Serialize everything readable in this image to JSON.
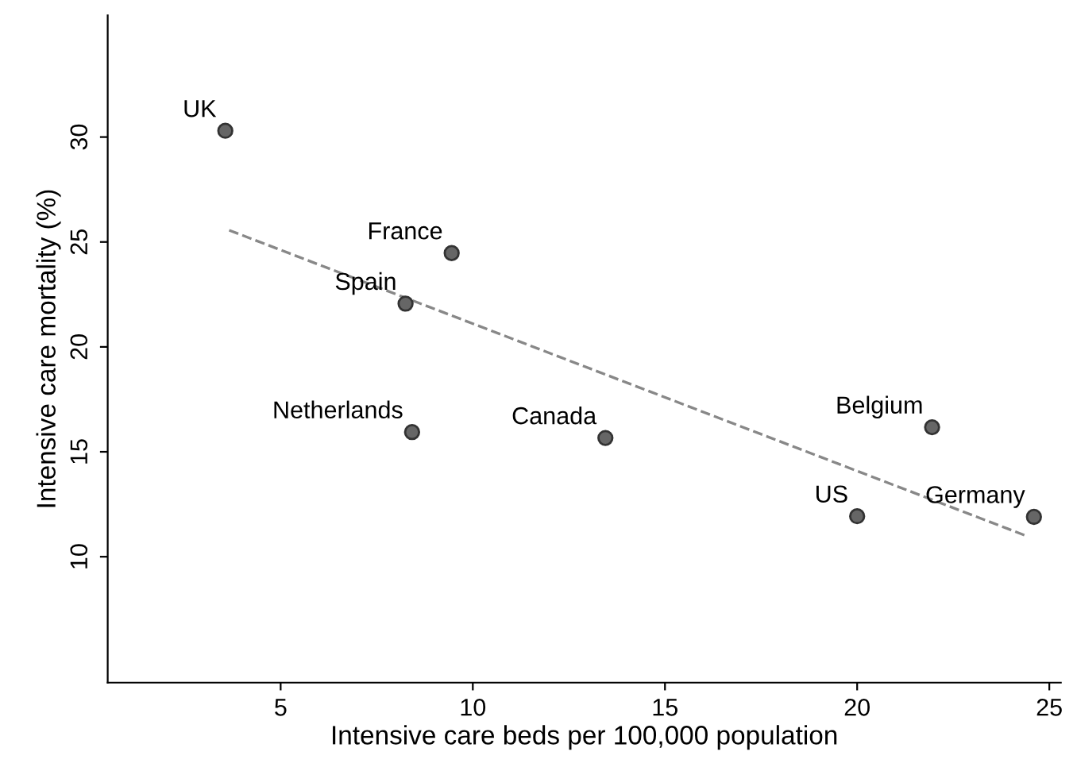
{
  "chart_data": {
    "type": "scatter",
    "xlabel": "Intensive care beds per 100,000 population",
    "ylabel": "Intensive care mortality (%)",
    "xlim": [
      0.5,
      25.3
    ],
    "ylim": [
      4,
      35.8
    ],
    "xticks": [
      5,
      10,
      15,
      20,
      25
    ],
    "yticks": [
      10,
      15,
      20,
      25,
      30
    ],
    "grid": false,
    "series": [
      {
        "color": "#666666",
        "marker": "circle",
        "x": [
          3.56,
          9.45,
          8.25,
          8.42,
          13.45,
          21.95,
          20.0,
          24.6
        ],
        "values": [
          30.3,
          24.47,
          22.06,
          15.94,
          15.66,
          16.17,
          11.93,
          11.9
        ]
      },
      {
        "type": "line",
        "color": "#888888",
        "line_style": "dashed",
        "x": [
          3.66,
          24.45
        ],
        "values": [
          25.56,
          10.96
        ]
      }
    ],
    "annotations": [
      {
        "text": "UK",
        "x": 3.56,
        "y": 30.3
      },
      {
        "text": "France",
        "x": 9.45,
        "y": 24.47
      },
      {
        "text": "Spain",
        "x": 8.25,
        "y": 22.06
      },
      {
        "text": "Netherlands",
        "x": 8.42,
        "y": 15.94
      },
      {
        "text": "Canada",
        "x": 13.45,
        "y": 15.66
      },
      {
        "text": "Belgium",
        "x": 21.95,
        "y": 16.17
      },
      {
        "text": "US",
        "x": 20.0,
        "y": 11.93
      },
      {
        "text": "Germany",
        "x": 24.6,
        "y": 11.9
      }
    ]
  }
}
